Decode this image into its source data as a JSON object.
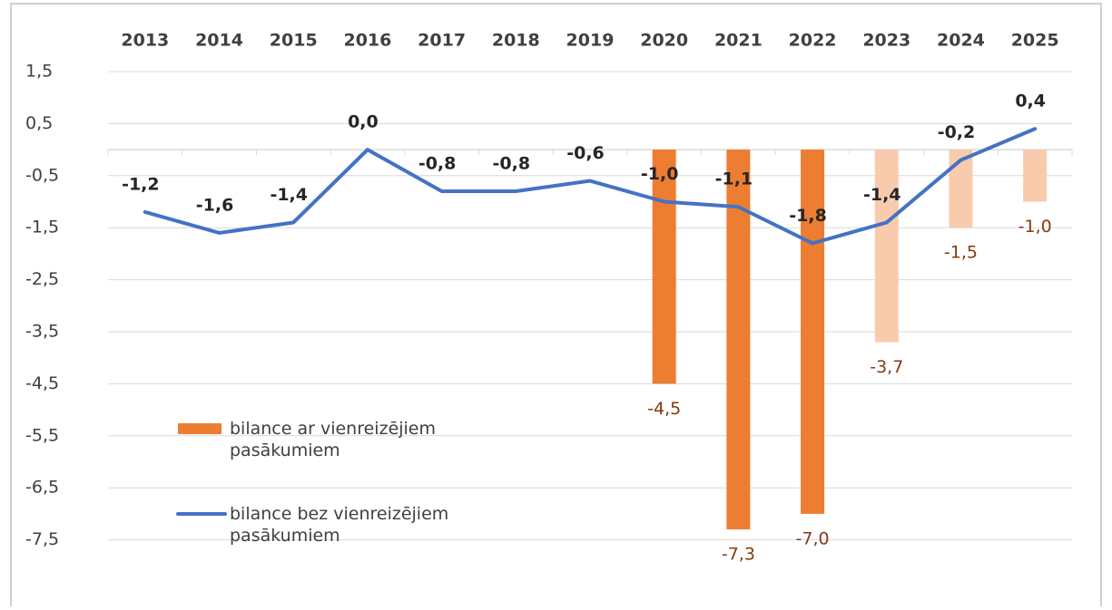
{
  "chart_data": {
    "type": "bar-line",
    "categories": [
      "2013",
      "2014",
      "2015",
      "2016",
      "2017",
      "2018",
      "2019",
      "2020",
      "2021",
      "2022",
      "2023",
      "2024",
      "2025"
    ],
    "series": [
      {
        "name": "bilance ar vienreizējiem pasākumiem",
        "type": "bar",
        "color": "#ed7d31",
        "colors": [
          null,
          null,
          null,
          null,
          null,
          null,
          null,
          "#ed7d31",
          "#ed7d31",
          "#ed7d31",
          "#f8cbad",
          "#f8cbad",
          "#f8cbad"
        ],
        "values": [
          null,
          null,
          null,
          null,
          null,
          null,
          null,
          -4.5,
          -7.3,
          -7.0,
          -3.7,
          -1.5,
          -1.0
        ],
        "value_labels": [
          null,
          null,
          null,
          null,
          null,
          null,
          null,
          "-4,5",
          "-7,3",
          "-7,0",
          "-3,7",
          "-1,5",
          "-1,0"
        ]
      },
      {
        "name": "bilance bez vienreizējiem pasākumiem",
        "type": "line",
        "color": "#4472c4",
        "values": [
          -1.2,
          -1.6,
          -1.4,
          0.0,
          -0.8,
          -0.8,
          -0.6,
          -1.0,
          -1.1,
          -1.8,
          -1.4,
          -0.2,
          0.4
        ],
        "value_labels": [
          "-1,2",
          "-1,6",
          "-1,4",
          "0,0",
          "-0,8",
          "-0,8",
          "-0,6",
          "-1,0",
          "-1,1",
          "-1,8",
          "-1,4",
          "-0,2",
          "0,4"
        ]
      }
    ],
    "ylim": [
      -8.5,
      1.5
    ],
    "yticks": [
      {
        "value": 1.5,
        "label": "1,5"
      },
      {
        "value": 0.5,
        "label": "0,5"
      },
      {
        "value": -0.5,
        "label": "-0,5"
      },
      {
        "value": -1.5,
        "label": "-1,5"
      },
      {
        "value": -2.5,
        "label": "-2,5"
      },
      {
        "value": -3.5,
        "label": "-3,5"
      },
      {
        "value": -4.5,
        "label": "-4,5"
      },
      {
        "value": -5.5,
        "label": "-5,5"
      },
      {
        "value": -6.5,
        "label": "-6,5"
      },
      {
        "value": -7.5,
        "label": "-7,5"
      }
    ],
    "grid": true,
    "legend": "left"
  }
}
